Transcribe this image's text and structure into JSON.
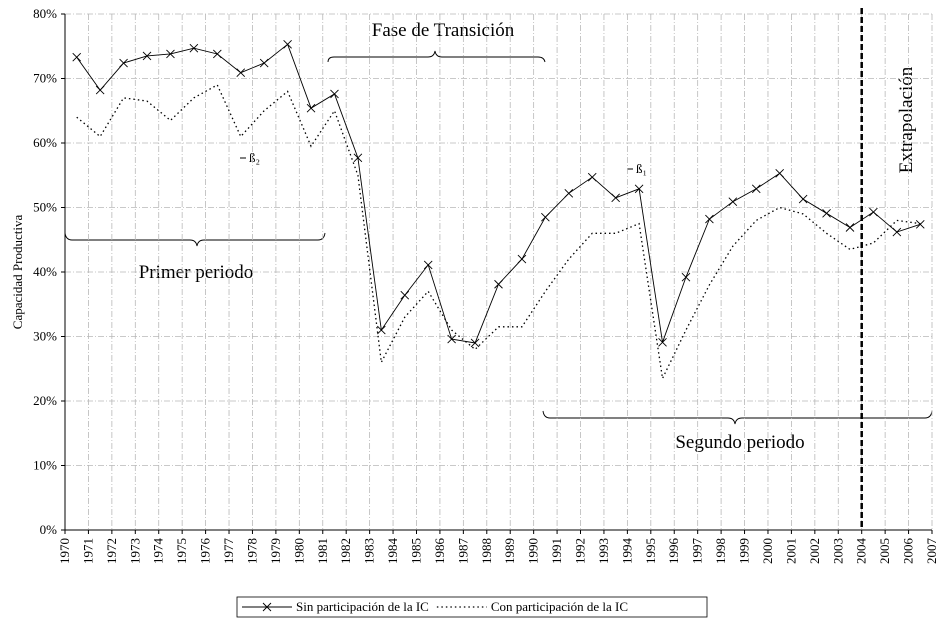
{
  "chart_data": {
    "type": "line",
    "y_label": "Capacidad Productiva",
    "x": [
      1970.5,
      1971.5,
      1972.5,
      1973.5,
      1974.5,
      1975.5,
      1976.5,
      1977.5,
      1978.5,
      1979.5,
      1980.5,
      1981.5,
      1982.5,
      1983.5,
      1984.5,
      1985.5,
      1986.5,
      1987.5,
      1988.5,
      1989.5,
      1990.5,
      1991.5,
      1992.5,
      1993.5,
      1994.5,
      1995.5,
      1996.5,
      1997.5,
      1998.5,
      1999.5,
      2000.5,
      2001.5,
      2002.5,
      2003.5,
      2004.5,
      2005.5,
      2006.5
    ],
    "series": [
      {
        "name": "Sin participación de la IC",
        "color": "#000000",
        "style": "solid",
        "marker": "x",
        "values": [
          73.3,
          68.2,
          72.4,
          73.5,
          73.8,
          74.7,
          73.8,
          70.9,
          72.4,
          75.3,
          65.4,
          67.6,
          57.7,
          31,
          36.4,
          41.1,
          29.6,
          29,
          38.1,
          42,
          48.5,
          52.2,
          54.7,
          51.5,
          52.9,
          29.1,
          39.2,
          48.2,
          50.9,
          52.9,
          55.3,
          51.3,
          49.1,
          46.9,
          49.3,
          46.2,
          47.4
        ]
      },
      {
        "name": "Con participación de la IC",
        "color": "#000000",
        "style": "dotted",
        "marker": "none",
        "values": [
          64,
          61,
          67,
          66.5,
          63.5,
          67,
          69,
          61,
          65,
          68,
          59.5,
          65,
          55,
          26,
          33,
          37,
          31,
          28,
          31.5,
          31.5,
          37,
          42,
          46,
          46,
          47.5,
          23.5,
          31,
          38,
          44,
          48,
          50,
          49,
          46,
          43.5,
          44.5,
          48,
          47.5
        ]
      }
    ],
    "xlim": [
      1970,
      2007
    ],
    "xticks": [
      1970,
      1971,
      1972,
      1973,
      1974,
      1975,
      1976,
      1977,
      1978,
      1979,
      1980,
      1981,
      1982,
      1983,
      1984,
      1985,
      1986,
      1987,
      1988,
      1989,
      1990,
      1991,
      1992,
      1993,
      1994,
      1995,
      1996,
      1997,
      1998,
      1999,
      2000,
      2001,
      2002,
      2003,
      2004,
      2005,
      2006,
      2007
    ],
    "ylim": [
      0,
      80
    ],
    "yticks": [
      {
        "value": 0,
        "label": "0%"
      },
      {
        "value": 10,
        "label": "10%"
      },
      {
        "value": 20,
        "label": "20%"
      },
      {
        "value": 30,
        "label": "30%"
      },
      {
        "value": 40,
        "label": "40%"
      },
      {
        "value": 50,
        "label": "50%"
      },
      {
        "value": 60,
        "label": "60%"
      },
      {
        "value": 70,
        "label": "70%"
      },
      {
        "value": 80,
        "label": "80%"
      }
    ],
    "grid": true,
    "extrapolation_start": 2004,
    "annotations": {
      "transition": "Fase de Transición",
      "first": "Primer periodo",
      "second": "Segundo periodo",
      "extrapolation": "Extrapolación",
      "beta2": "ß₂",
      "beta1": "ß₁"
    }
  }
}
